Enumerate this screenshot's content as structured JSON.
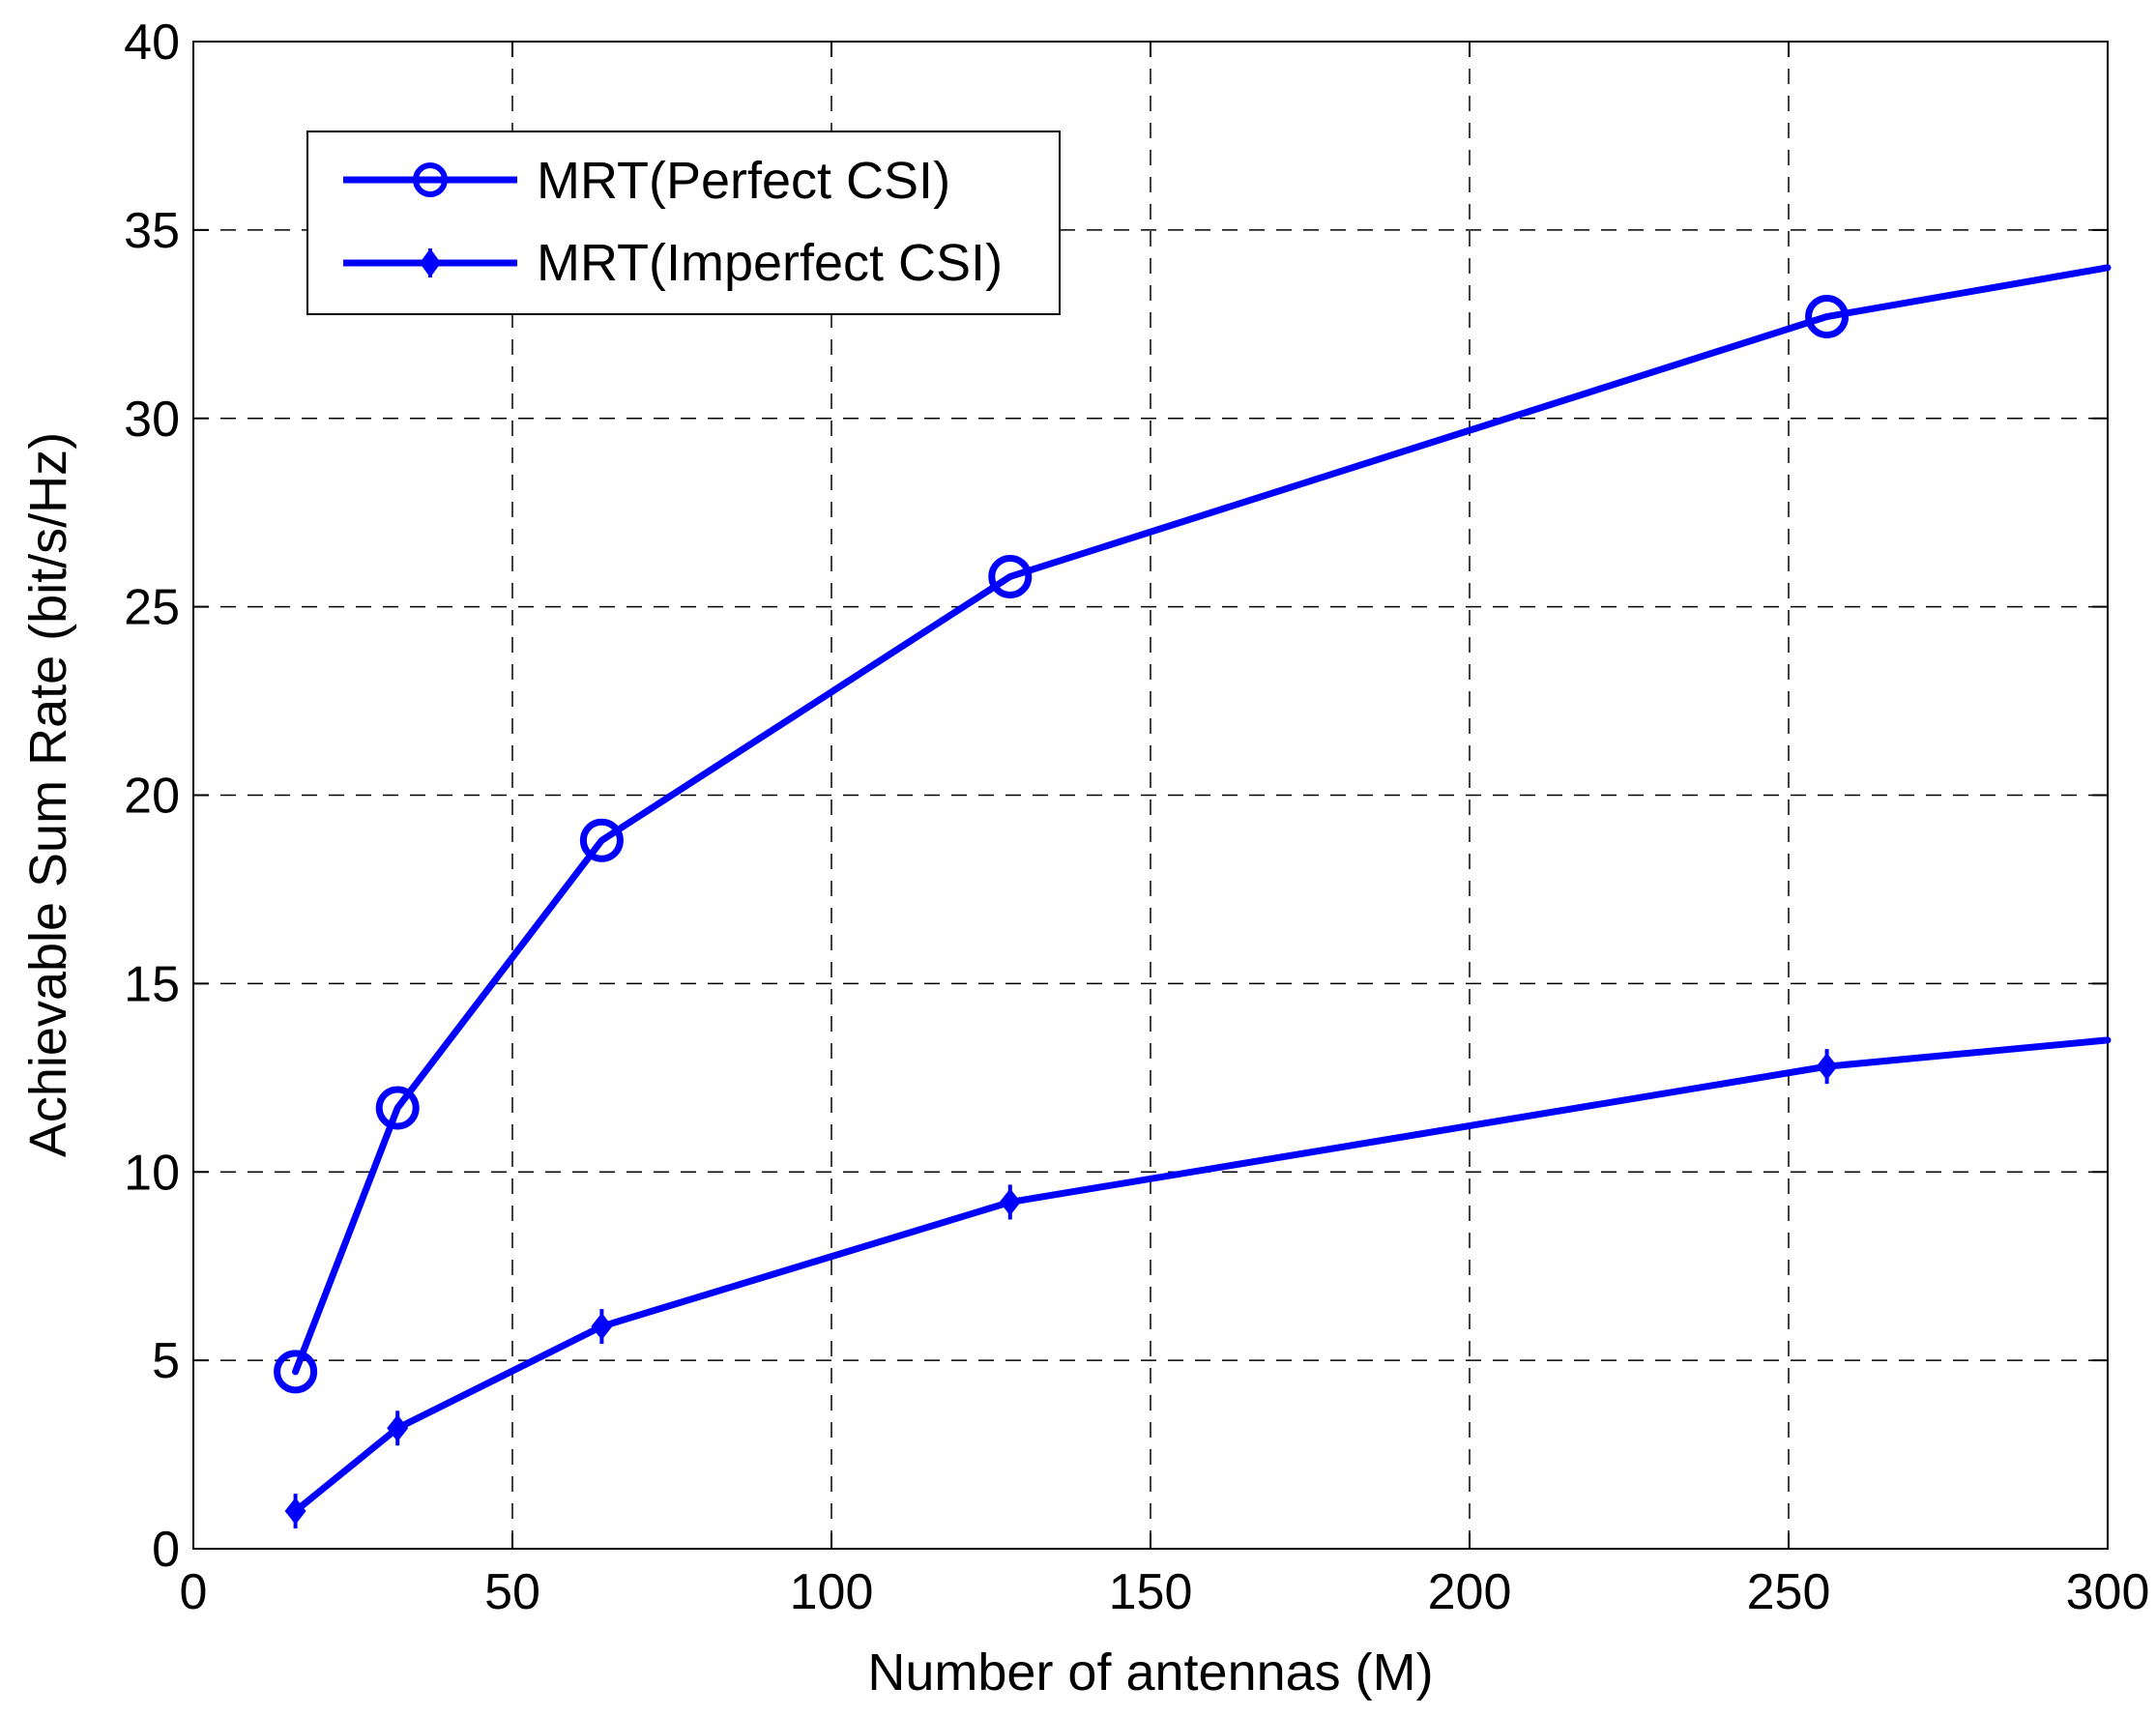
{
  "chart_data": {
    "type": "line",
    "title": "",
    "xlabel": "Number of antennas (M)",
    "ylabel": "Achievable Sum Rate (bit/s/Hz)",
    "xlim": [
      0,
      300
    ],
    "ylim": [
      0,
      40
    ],
    "xticks": [
      0,
      50,
      100,
      150,
      200,
      250,
      300
    ],
    "yticks": [
      0,
      5,
      10,
      15,
      20,
      25,
      30,
      35,
      40
    ],
    "grid": true,
    "grid_style": "dashed",
    "legend_position": "top-left",
    "series": [
      {
        "name": "MRT(Perfect CSI)",
        "marker": "circle",
        "color": "#0000ff",
        "x": [
          16,
          32,
          64,
          128,
          256,
          300
        ],
        "y": [
          4.7,
          11.7,
          18.8,
          25.8,
          32.7,
          34.0
        ],
        "marker_x": [
          16,
          32,
          64,
          128,
          256
        ]
      },
      {
        "name": "MRT(Imperfect CSI)",
        "marker": "diamond",
        "color": "#0000ff",
        "x": [
          16,
          32,
          64,
          128,
          256,
          300
        ],
        "y": [
          1.0,
          3.2,
          5.9,
          9.2,
          12.8,
          13.5
        ],
        "marker_x": [
          16,
          32,
          64,
          128,
          256
        ]
      }
    ]
  }
}
